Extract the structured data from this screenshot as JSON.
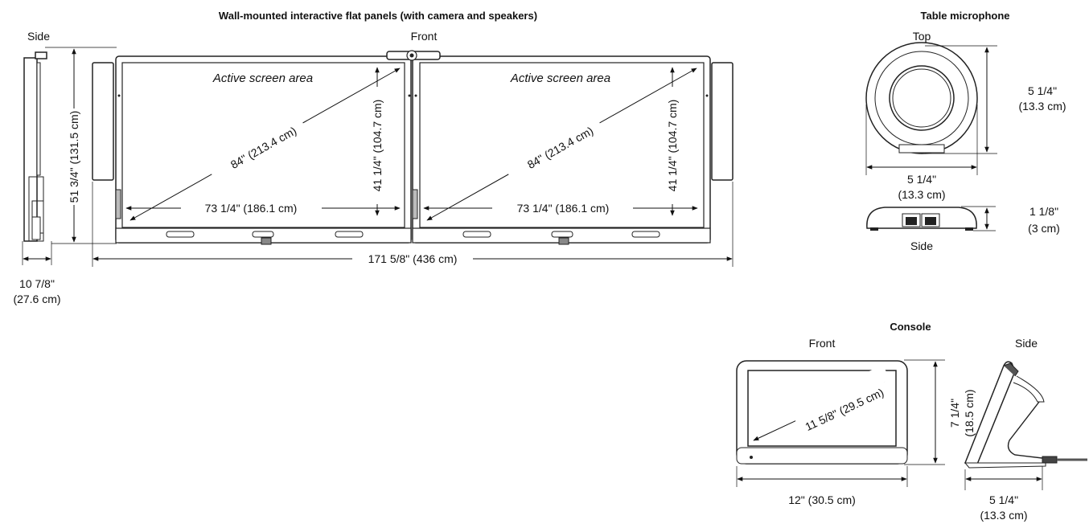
{
  "panels": {
    "title": "Wall-mounted interactive flat panels (with camera and speakers)",
    "side_label": "Side",
    "front_label": "Front",
    "active_area_label": "Active screen area",
    "diagonal": "84\" (213.4 cm)",
    "screen_width": "73 1/4\" (186.1 cm)",
    "screen_height": "41 1/4\" (104.7 cm)",
    "overall_height": "51 3/4\" (131.5 cm)",
    "overall_width": "171 5/8\" (436 cm)",
    "depth_in": "10 7/8\"",
    "depth_cm": "(27.6 cm)"
  },
  "microphone": {
    "title": "Table microphone",
    "top_label": "Top",
    "side_label": "Side",
    "diameter_v_in": "5 1/4\"",
    "diameter_v_cm": "(13.3 cm)",
    "diameter_h_in": "5 1/4\"",
    "diameter_h_cm": "(13.3 cm)",
    "height_in": "1 1/8\"",
    "height_cm": "(3 cm)"
  },
  "console": {
    "title": "Console",
    "front_label": "Front",
    "side_label": "Side",
    "diagonal": "11 5/8\" (29.5 cm)",
    "height_in": "7 1/4\"",
    "height_cm": "(18.5 cm)",
    "width": "12\" (30.5 cm)",
    "depth_in": "5 1/4\"",
    "depth_cm": "(13.3 cm)"
  }
}
